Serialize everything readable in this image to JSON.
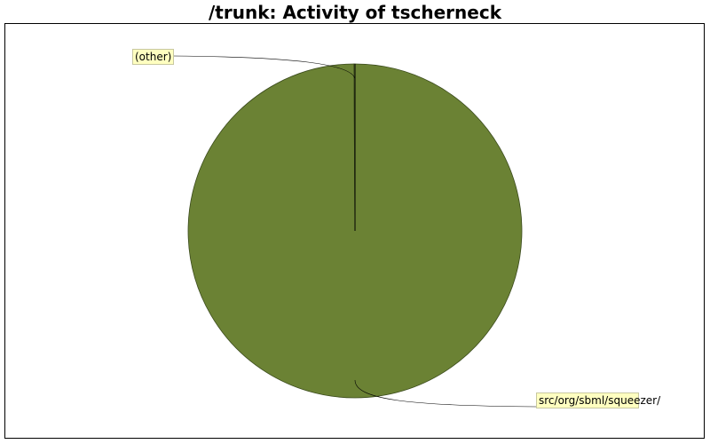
{
  "chart_data": {
    "type": "pie",
    "title": "/trunk: Activity of tscherneck",
    "slices": [
      {
        "label": "src/org/sbml/squeezer/",
        "value": 99.9,
        "color": "#6b8234"
      },
      {
        "label": "(other)",
        "value": 0.1,
        "color": "#6b8234"
      }
    ]
  }
}
